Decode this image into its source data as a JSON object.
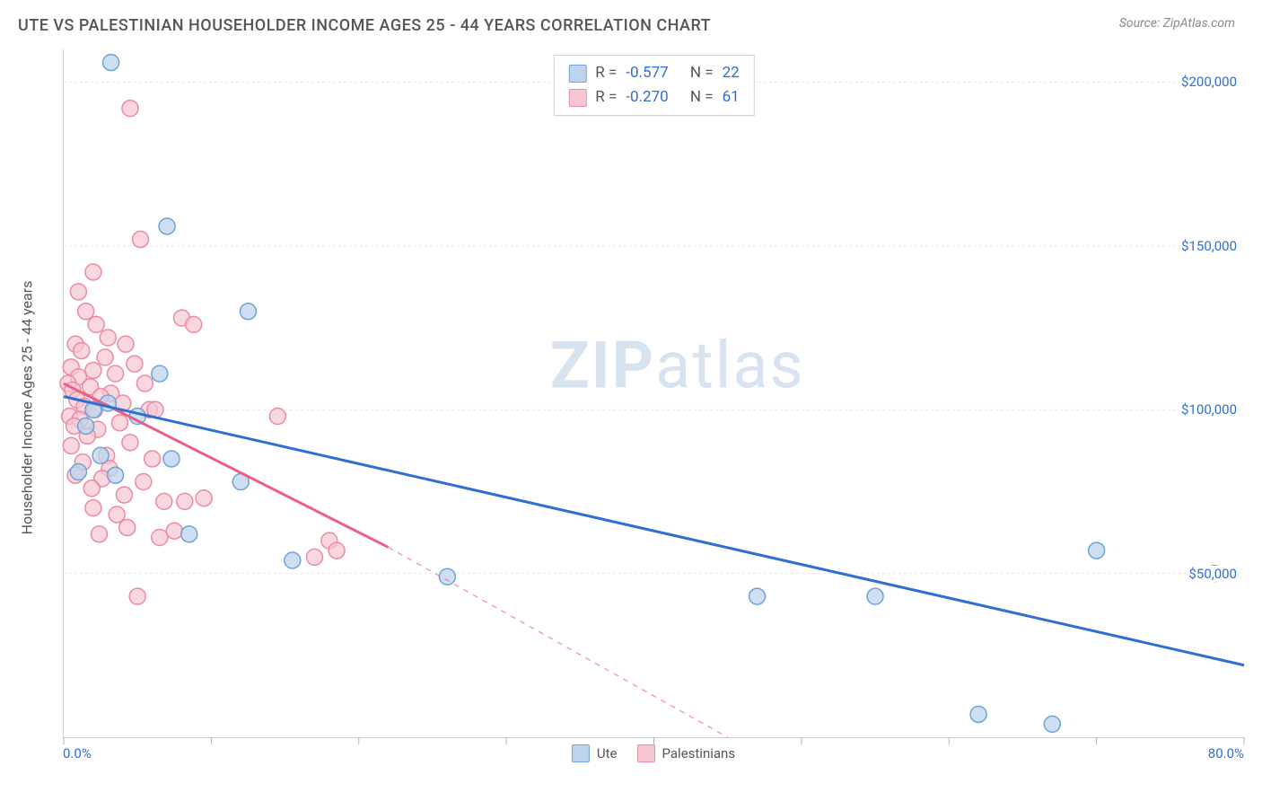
{
  "header": {
    "title": "UTE VS PALESTINIAN HOUSEHOLDER INCOME AGES 25 - 44 YEARS CORRELATION CHART",
    "source": "Source: ZipAtlas.com"
  },
  "watermark": {
    "zip": "ZIP",
    "atlas": "atlas"
  },
  "chart": {
    "type": "scatter",
    "y_axis_label": "Householder Income Ages 25 - 44 years",
    "xlim": [
      0,
      80
    ],
    "ylim": [
      0,
      210000
    ],
    "x_ticks": [
      0,
      10,
      20,
      30,
      40,
      50,
      60,
      70,
      80
    ],
    "x_tick_labels_shown": {
      "min": "0.0%",
      "max": "80.0%"
    },
    "y_grid": [
      50000,
      100000,
      150000,
      200000
    ],
    "y_tick_labels": [
      "$50,000",
      "$100,000",
      "$150,000",
      "$200,000"
    ],
    "background_color": "#ffffff",
    "grid_color": "#e5e5e5",
    "axis_color": "#d0d0d0",
    "series": {
      "ute": {
        "label": "Ute",
        "marker_fill": "#bcd4ec",
        "marker_stroke": "#6fa3d8",
        "marker_opacity": 0.75,
        "marker_radius": 9,
        "line_color": "#2f6fd0",
        "line_width": 3,
        "stats": {
          "R": "-0.577",
          "N": "22"
        },
        "trend": {
          "x1": 0,
          "y1": 104000,
          "x2": 80,
          "y2": 22000,
          "dash_after_x": 80
        },
        "points": [
          [
            3.2,
            206000
          ],
          [
            7.0,
            156000
          ],
          [
            12.5,
            130000
          ],
          [
            6.5,
            111000
          ],
          [
            3.0,
            102000
          ],
          [
            2.0,
            100000
          ],
          [
            5.0,
            98000
          ],
          [
            1.5,
            95000
          ],
          [
            2.5,
            86000
          ],
          [
            7.3,
            85000
          ],
          [
            1.0,
            81000
          ],
          [
            3.5,
            80000
          ],
          [
            12.0,
            78000
          ],
          [
            8.5,
            62000
          ],
          [
            15.5,
            54000
          ],
          [
            26.0,
            49000
          ],
          [
            47.0,
            43000
          ],
          [
            55.0,
            43000
          ],
          [
            78.0,
            50000
          ],
          [
            70.0,
            57000
          ],
          [
            67.0,
            4000
          ],
          [
            62.0,
            7000
          ]
        ]
      },
      "palestinians": {
        "label": "Palestinians",
        "marker_fill": "#f6c6d2",
        "marker_stroke": "#ec8aa4",
        "marker_opacity": 0.7,
        "marker_radius": 9,
        "line_color": "#ec5f85",
        "line_width": 3,
        "stats": {
          "R": "-0.270",
          "N": "61"
        },
        "trend": {
          "x1": 0,
          "y1": 108000,
          "x2": 22,
          "y2": 58000,
          "dash_after_x": 22,
          "dash_x2": 45,
          "dash_y2": 0
        },
        "points": [
          [
            4.5,
            192000
          ],
          [
            5.2,
            152000
          ],
          [
            2.0,
            142000
          ],
          [
            1.0,
            136000
          ],
          [
            1.5,
            130000
          ],
          [
            8.0,
            128000
          ],
          [
            2.2,
            126000
          ],
          [
            8.8,
            126000
          ],
          [
            3.0,
            122000
          ],
          [
            0.8,
            120000
          ],
          [
            4.2,
            120000
          ],
          [
            1.2,
            118000
          ],
          [
            2.8,
            116000
          ],
          [
            4.8,
            114000
          ],
          [
            0.5,
            113000
          ],
          [
            2.0,
            112000
          ],
          [
            3.5,
            111000
          ],
          [
            1.0,
            110000
          ],
          [
            0.3,
            108000
          ],
          [
            5.5,
            108000
          ],
          [
            1.8,
            107000
          ],
          [
            0.6,
            106000
          ],
          [
            3.2,
            105000
          ],
          [
            2.5,
            104000
          ],
          [
            0.9,
            103000
          ],
          [
            4.0,
            102000
          ],
          [
            1.4,
            101000
          ],
          [
            2.1,
            100000
          ],
          [
            5.8,
            100000
          ],
          [
            6.2,
            100000
          ],
          [
            0.4,
            98000
          ],
          [
            14.5,
            98000
          ],
          [
            1.1,
            97000
          ],
          [
            3.8,
            96000
          ],
          [
            0.7,
            95000
          ],
          [
            2.3,
            94000
          ],
          [
            1.6,
            92000
          ],
          [
            4.5,
            90000
          ],
          [
            0.5,
            89000
          ],
          [
            2.9,
            86000
          ],
          [
            6.0,
            85000
          ],
          [
            1.3,
            84000
          ],
          [
            3.1,
            82000
          ],
          [
            0.8,
            80000
          ],
          [
            2.6,
            79000
          ],
          [
            5.4,
            78000
          ],
          [
            1.9,
            76000
          ],
          [
            4.1,
            74000
          ],
          [
            6.8,
            72000
          ],
          [
            8.2,
            72000
          ],
          [
            2.0,
            70000
          ],
          [
            3.6,
            68000
          ],
          [
            9.5,
            73000
          ],
          [
            4.3,
            64000
          ],
          [
            7.5,
            63000
          ],
          [
            2.4,
            62000
          ],
          [
            6.5,
            61000
          ],
          [
            18.0,
            60000
          ],
          [
            17.0,
            55000
          ],
          [
            5.0,
            43000
          ],
          [
            18.5,
            57000
          ]
        ]
      }
    },
    "stats_box": {
      "r_label": "R =",
      "n_label": "N ="
    },
    "bottom_legend": {
      "ute": "Ute",
      "palestinians": "Palestinians"
    }
  }
}
